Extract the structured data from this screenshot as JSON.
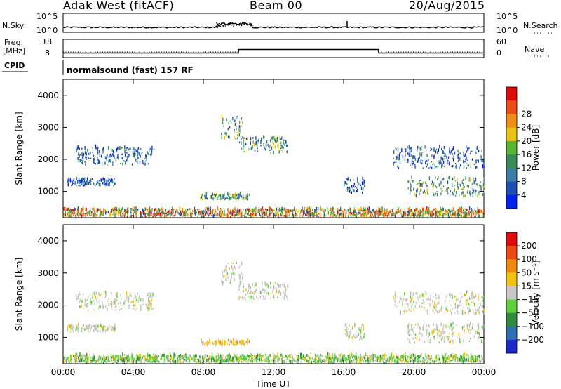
{
  "header": {
    "title": "Adak West (fitACF)",
    "beam": "Beam 00",
    "date": "20/Aug/2015"
  },
  "strips": {
    "nsky": {
      "label": "N.Sky",
      "ticks": [
        "10^5",
        "10^0"
      ]
    },
    "nsearch": {
      "label": "N.Search",
      "ticks": [
        "10^5",
        "10^0"
      ]
    },
    "freq": {
      "label_top": "Freq.",
      "label_bottom": "[MHz]",
      "ticks": [
        "18",
        "8"
      ]
    },
    "nave": {
      "label": "Nave",
      "ticks": [
        "60",
        "0"
      ]
    },
    "cpid": {
      "label": "CPID",
      "text": "normalsound (fast) 157 RF"
    }
  },
  "chart_data": [
    {
      "type": "heatmap",
      "title": "",
      "parameter": "Power",
      "ylabel": "Slant Range [km]",
      "xlabel": "",
      "xlim": [
        0,
        24
      ],
      "ylim": [
        180,
        4500
      ],
      "y_ticks": [
        "1000",
        "2000",
        "3000",
        "4000"
      ],
      "x_tick_labels": [
        "00:00",
        "04:00",
        "08:00",
        "12:00",
        "16:00",
        "20:00",
        "00:00"
      ],
      "colorbar": {
        "label": "Power [dB]",
        "tick_labels": [
          "4",
          "8",
          "12",
          "16",
          "20",
          "24",
          "28"
        ],
        "colors": [
          "#0022ee",
          "#1f4fb4",
          "#3c7da6",
          "#3a8b58",
          "#58b431",
          "#e8c214",
          "#ee8e14",
          "#ea4e12",
          "#dd0c0c"
        ]
      },
      "echo_regions": [
        {
          "t": [
            0.7,
            5.2
          ],
          "range": [
            1800,
            2350
          ],
          "level": "blue"
        },
        {
          "t": [
            0.2,
            3.0
          ],
          "range": [
            1150,
            1350
          ],
          "level": "blue"
        },
        {
          "t": [
            7.8,
            10.6
          ],
          "range": [
            720,
            880
          ],
          "level": "blue-green"
        },
        {
          "t": [
            9.0,
            10.2
          ],
          "range": [
            2600,
            3300
          ],
          "level": "green"
        },
        {
          "t": [
            10.0,
            12.8
          ],
          "range": [
            2150,
            2650
          ],
          "level": "blue-green"
        },
        {
          "t": [
            16.0,
            17.2
          ],
          "range": [
            900,
            1350
          ],
          "level": "blue"
        },
        {
          "t": [
            19.6,
            24.0
          ],
          "range": [
            800,
            1400
          ],
          "level": "green"
        },
        {
          "t": [
            18.8,
            24.0
          ],
          "range": [
            1700,
            2350
          ],
          "level": "blue"
        },
        {
          "t": [
            0.0,
            24.0
          ],
          "range": [
            180,
            420
          ],
          "level": "mixed"
        }
      ]
    },
    {
      "type": "heatmap",
      "title": "",
      "parameter": "Velocity",
      "ylabel": "Slant Range [km]",
      "xlabel": "Time UT",
      "xlim": [
        0,
        24
      ],
      "ylim": [
        180,
        4500
      ],
      "y_ticks": [
        "1000",
        "2000",
        "3000",
        "4000"
      ],
      "x_tick_labels": [
        "00:00",
        "04:00",
        "08:00",
        "12:00",
        "16:00",
        "20:00",
        "00:00"
      ],
      "colorbar": {
        "label": "Velocity [m s⁻¹]",
        "tick_labels": [
          "200",
          "100",
          "50",
          "15",
          "−15",
          "−50",
          "−100",
          "−200"
        ],
        "colors": [
          "#1c28c8",
          "#2e6fb0",
          "#2f8c3e",
          "#5bd13a",
          "#c8c8c8",
          "#f2c20c",
          "#f08a0e",
          "#ec4a10",
          "#e00c0c"
        ]
      },
      "echo_regions": [
        {
          "t": [
            0.7,
            5.2
          ],
          "range": [
            1800,
            2350
          ],
          "level": "grey"
        },
        {
          "t": [
            0.2,
            3.0
          ],
          "range": [
            1150,
            1350
          ],
          "level": "grey"
        },
        {
          "t": [
            7.8,
            10.6
          ],
          "range": [
            720,
            880
          ],
          "level": "orange"
        },
        {
          "t": [
            9.0,
            10.2
          ],
          "range": [
            2600,
            3300
          ],
          "level": "grey"
        },
        {
          "t": [
            10.0,
            12.8
          ],
          "range": [
            2150,
            2650
          ],
          "level": "grey"
        },
        {
          "t": [
            16.0,
            17.2
          ],
          "range": [
            900,
            1350
          ],
          "level": "grey"
        },
        {
          "t": [
            19.6,
            24.0
          ],
          "range": [
            800,
            1400
          ],
          "level": "grey"
        },
        {
          "t": [
            18.8,
            24.0
          ],
          "range": [
            1700,
            2350
          ],
          "level": "grey"
        },
        {
          "t": [
            0.0,
            24.0
          ],
          "range": [
            180,
            420
          ],
          "level": "green"
        }
      ]
    }
  ]
}
